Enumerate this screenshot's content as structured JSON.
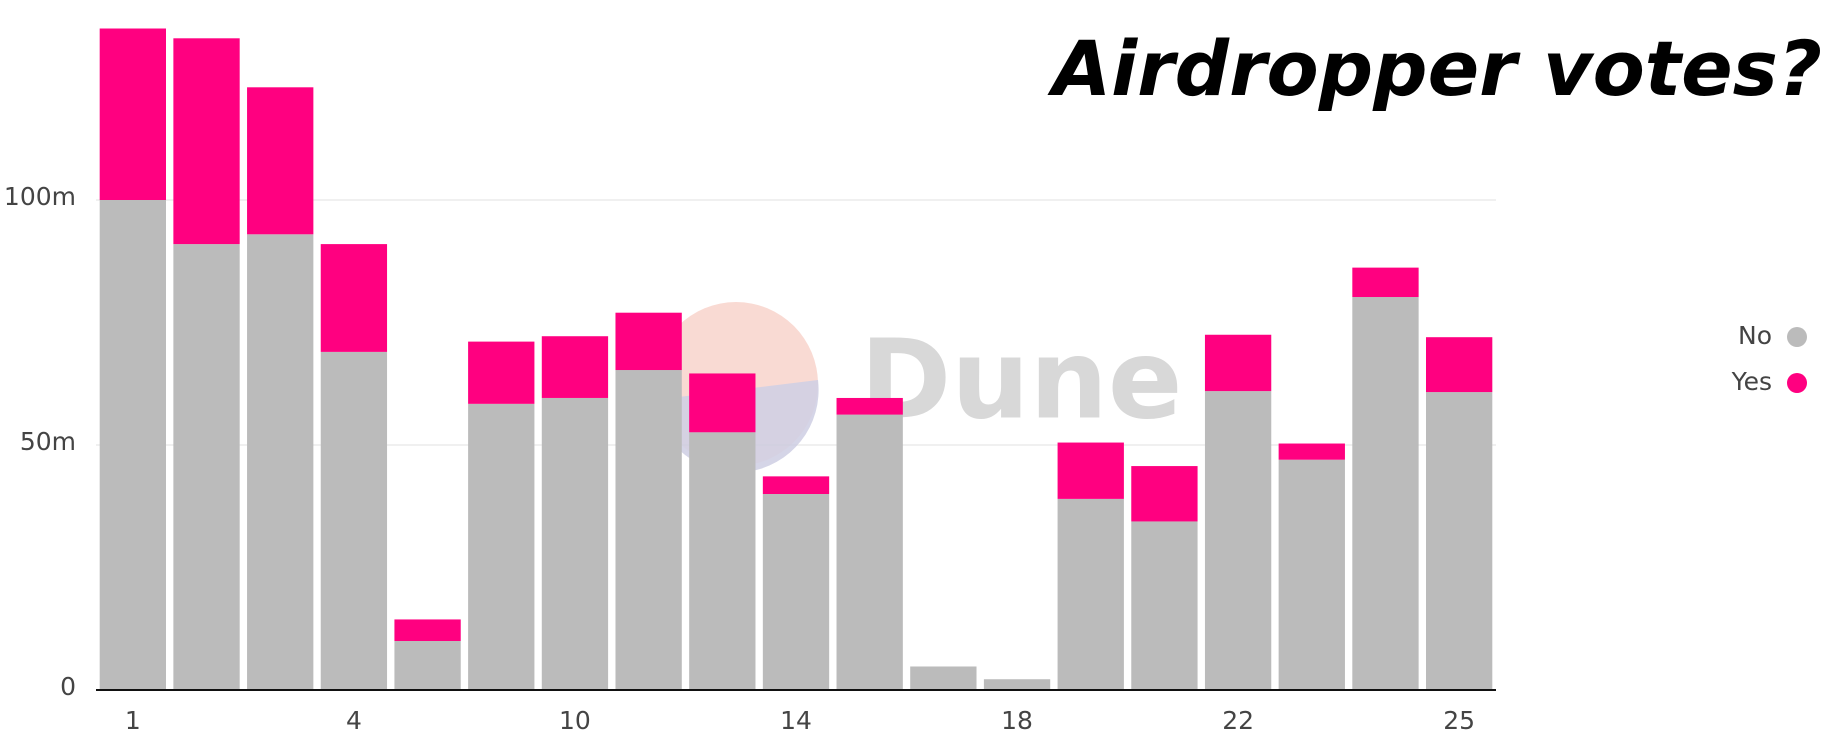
{
  "chart_data": {
    "type": "stacked_bar",
    "title": "Airdropper votes?",
    "watermark": "Dune",
    "categories": [
      "1",
      null,
      null,
      "4",
      null,
      null,
      "10",
      null,
      null,
      "14",
      null,
      null,
      "18",
      null,
      null,
      "22",
      null,
      null,
      "25"
    ],
    "series": [
      {
        "name": "No",
        "color": "#bbbbbb",
        "values": [
          100,
          91,
          93,
          69,
          10,
          58.4,
          59.6,
          65.3,
          52.6,
          40,
          56.2,
          4.8,
          2.2,
          39,
          34.4,
          61,
          47,
          80.2,
          60.8
        ]
      },
      {
        "name": "Yes",
        "color": "#ff0080",
        "values": [
          35,
          42,
          30,
          22,
          4.4,
          12.7,
          12.6,
          11.7,
          12,
          3.6,
          3.4,
          0,
          0,
          11.5,
          11.3,
          11.5,
          3.3,
          6,
          11.2
        ]
      }
    ],
    "ylim": [
      0,
      140
    ],
    "yticks": [
      0,
      {
        "value": 50,
        "label": "50m"
      },
      {
        "value": 100,
        "label": "100m"
      }
    ],
    "grid": true,
    "legend": "right"
  }
}
